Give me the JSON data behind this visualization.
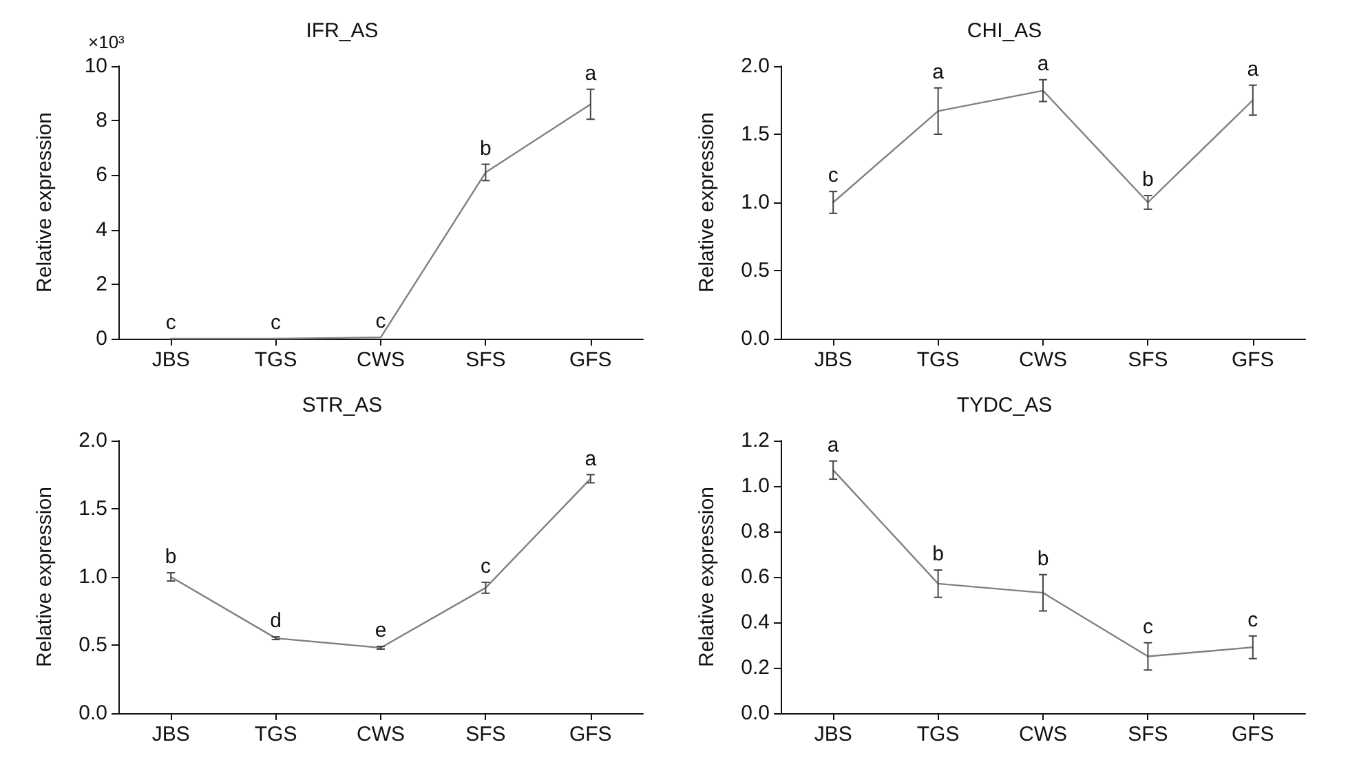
{
  "chart_data": [
    {
      "type": "line",
      "title": "IFR_AS",
      "ylabel": "Relative expression",
      "categories": [
        "JBS",
        "TGS",
        "CWS",
        "SFS",
        "GFS"
      ],
      "values": [
        0,
        0,
        0.05,
        6.1,
        8.6
      ],
      "errors": [
        null,
        null,
        null,
        0.3,
        0.55
      ],
      "value_labels": [
        "c",
        "c",
        "c",
        "b",
        "a"
      ],
      "color": "#808080",
      "marker": "none",
      "ylim": [
        0,
        10
      ],
      "yticks": [
        0,
        2,
        4,
        6,
        8,
        10
      ],
      "annotations": [
        "×10³"
      ]
    },
    {
      "type": "line",
      "title": "CHI_AS",
      "ylabel": "Relative expression",
      "categories": [
        "JBS",
        "TGS",
        "CWS",
        "SFS",
        "GFS"
      ],
      "values": [
        1.0,
        1.67,
        1.82,
        1.0,
        1.75
      ],
      "errors": [
        0.08,
        0.17,
        0.08,
        0.05,
        0.11
      ],
      "value_labels": [
        "c",
        "a",
        "a",
        "b",
        "a"
      ],
      "color": "#808080",
      "marker": "none",
      "ylim": [
        0,
        2
      ],
      "yticks": [
        {
          "value": 0,
          "label": "0.0"
        },
        0.5,
        {
          "value": 1,
          "label": "1.0"
        },
        1.5,
        {
          "value": 2,
          "label": "2.0"
        }
      ]
    },
    {
      "type": "line",
      "title": "STR_AS",
      "ylabel": "Relative expression",
      "categories": [
        "JBS",
        "TGS",
        "CWS",
        "SFS",
        "GFS"
      ],
      "values": [
        1.0,
        0.55,
        0.48,
        0.92,
        1.72
      ],
      "errors": [
        0.03,
        0.01,
        0.01,
        0.04,
        0.03
      ],
      "value_labels": [
        "b",
        "d",
        "e",
        "c",
        "a"
      ],
      "color": "#808080",
      "marker": "none",
      "ylim": [
        0,
        2
      ],
      "yticks": [
        {
          "value": 0,
          "label": "0.0"
        },
        0.5,
        {
          "value": 1,
          "label": "1.0"
        },
        1.5,
        {
          "value": 2,
          "label": "2.0"
        }
      ]
    },
    {
      "type": "line",
      "title": "TYDC_AS",
      "ylabel": "Relative expression",
      "categories": [
        "JBS",
        "TGS",
        "CWS",
        "SFS",
        "GFS"
      ],
      "values": [
        1.07,
        0.57,
        0.53,
        0.25,
        0.29
      ],
      "errors": [
        0.04,
        0.06,
        0.08,
        0.06,
        0.05
      ],
      "value_labels": [
        "a",
        "b",
        "b",
        "c",
        "c"
      ],
      "color": "#808080",
      "marker": "none",
      "ylim": [
        0,
        1.2
      ],
      "yticks": [
        {
          "value": 0,
          "label": "0.0"
        },
        0.2,
        0.4,
        0.6,
        0.8,
        {
          "value": 1,
          "label": "1.0"
        },
        1.2
      ]
    }
  ]
}
